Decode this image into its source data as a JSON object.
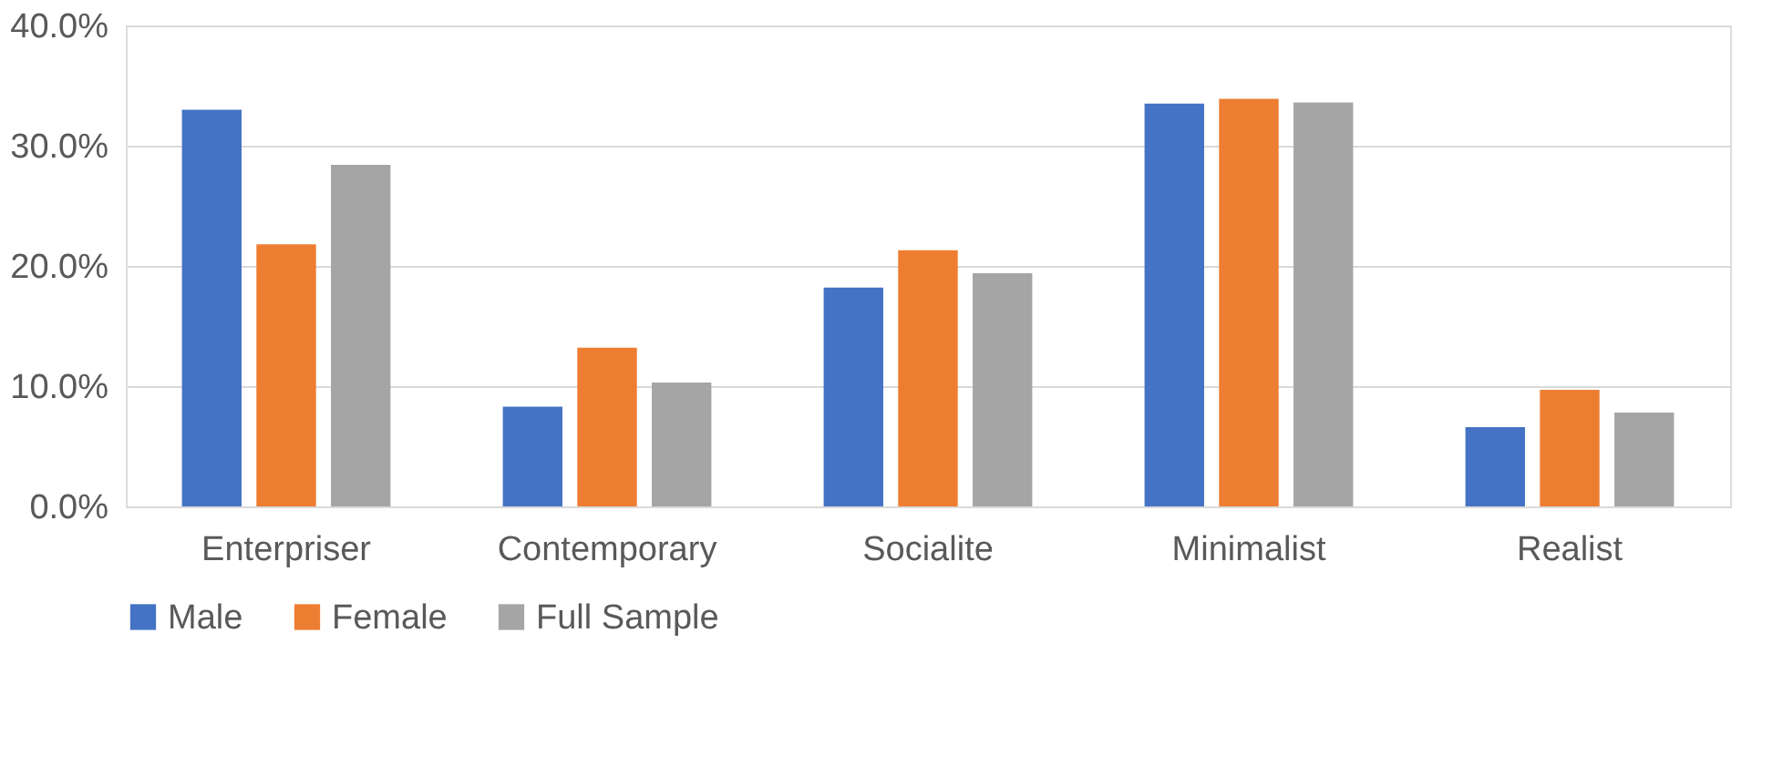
{
  "chart_data": {
    "type": "bar",
    "categories": [
      "Enterpriser",
      "Contemporary",
      "Socialite",
      "Minimalist",
      "Realist"
    ],
    "series": [
      {
        "name": "Male",
        "color": "#4472c4",
        "values": [
          33.0,
          8.3,
          18.2,
          33.5,
          6.6
        ]
      },
      {
        "name": "Female",
        "color": "#ed7d31",
        "values": [
          21.8,
          13.2,
          21.3,
          33.9,
          9.7
        ]
      },
      {
        "name": "Full Sample",
        "color": "#a5a5a5",
        "values": [
          28.4,
          10.3,
          19.4,
          33.6,
          7.8
        ]
      }
    ],
    "ylim": [
      0,
      40
    ],
    "yticks": [
      {
        "value": 0,
        "label": "0.0%"
      },
      {
        "value": 10,
        "label": "10.0%"
      },
      {
        "value": 20,
        "label": "20.0%"
      },
      {
        "value": 30,
        "label": "30.0%"
      },
      {
        "value": 40,
        "label": "40.0%"
      }
    ],
    "grid": "y",
    "legend": "bottom"
  }
}
